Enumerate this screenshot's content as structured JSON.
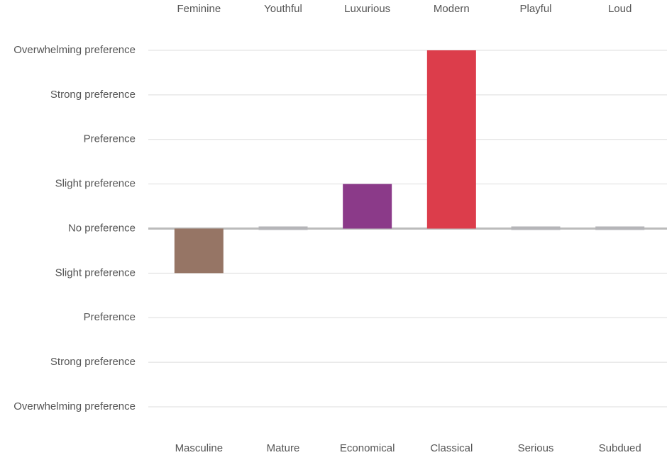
{
  "chart_data": {
    "type": "bar",
    "categories": [
      "Feminine",
      "Youthful",
      "Luxurious",
      "Modern",
      "Playful",
      "Loud"
    ],
    "opposite_categories": [
      "Masculine",
      "Mature",
      "Economical",
      "Classical",
      "Serious",
      "Subdued"
    ],
    "values": [
      -1,
      0,
      1,
      4,
      0,
      0
    ],
    "colors": [
      "#967565",
      "#b5b5b8",
      "#8b3a89",
      "#dc3d4b",
      "#b5b5b8",
      "#b5b5b8"
    ],
    "ylim": [
      -4,
      4
    ],
    "yticks": [
      {
        "value": 4,
        "label": "Overwhelming preference"
      },
      {
        "value": 3,
        "label": "Strong preference"
      },
      {
        "value": 2,
        "label": "Preference"
      },
      {
        "value": 1,
        "label": "Slight preference"
      },
      {
        "value": 0,
        "label": "No preference"
      },
      {
        "value": -1,
        "label": "Slight preference"
      },
      {
        "value": -2,
        "label": "Preference"
      },
      {
        "value": -3,
        "label": "Strong preference"
      },
      {
        "value": -4,
        "label": "Overwhelming preference"
      }
    ],
    "grid": true
  }
}
